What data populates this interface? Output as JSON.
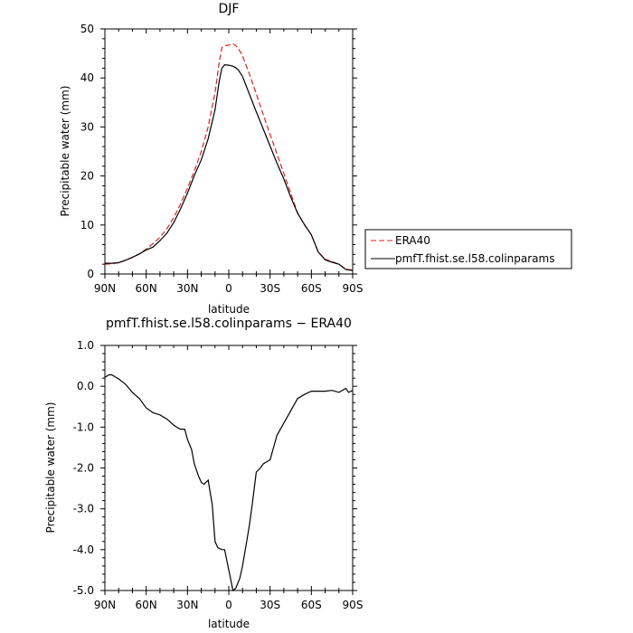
{
  "chart_data": [
    {
      "type": "line",
      "title": "DJF",
      "xlabel": "latitude",
      "ylabel": "Precipitable water (mm)",
      "xticks": [
        "90N",
        "60N",
        "30N",
        "0",
        "30S",
        "60S",
        "90S"
      ],
      "xlim": [
        90,
        -90
      ],
      "ylim": [
        0,
        50
      ],
      "yticks": [
        "0",
        "10",
        "20",
        "30",
        "40",
        "50"
      ],
      "legend_position": "right",
      "series": [
        {
          "name": "ERA40",
          "color": "#e02020",
          "dash": "dashed",
          "x": [
            90,
            85,
            80,
            75,
            70,
            65,
            60,
            55,
            50,
            45,
            40,
            35,
            30,
            25,
            20,
            15,
            10,
            7,
            5,
            3,
            0,
            -3,
            -5,
            -7,
            -10,
            -15,
            -20,
            -25,
            -30,
            -35,
            -40,
            -45,
            -50,
            -55,
            -60,
            -65,
            -70,
            -75,
            -80,
            -85,
            -90
          ],
          "y": [
            2.0,
            2.1,
            2.3,
            2.8,
            3.4,
            4.1,
            5.1,
            6.2,
            7.5,
            9.2,
            11.5,
            14.3,
            17.5,
            21.0,
            25.0,
            30.0,
            37.0,
            43.0,
            46.2,
            46.6,
            46.7,
            47.0,
            46.6,
            46.0,
            44.5,
            40.8,
            36.8,
            32.5,
            28.5,
            24.5,
            20.5,
            16.5,
            12.5,
            10.0,
            8.0,
            4.5,
            3.0,
            2.5,
            2.0,
            1.0,
            0.8
          ]
        },
        {
          "name": "pmfT.fhist.se.l58.colinparams",
          "color": "#000000",
          "dash": "solid",
          "x": [
            90,
            85,
            80,
            75,
            70,
            65,
            60,
            55,
            50,
            45,
            40,
            35,
            30,
            25,
            20,
            15,
            10,
            7,
            5,
            3,
            0,
            -3,
            -5,
            -7,
            -10,
            -15,
            -20,
            -25,
            -30,
            -35,
            -40,
            -45,
            -50,
            -55,
            -60,
            -65,
            -70,
            -75,
            -80,
            -85,
            -90
          ],
          "y": [
            2.2,
            2.2,
            2.3,
            2.8,
            3.4,
            4.1,
            4.9,
            5.5,
            6.8,
            8.3,
            10.5,
            13.3,
            16.5,
            20.1,
            23.3,
            27.6,
            33.5,
            39.2,
            42.0,
            42.7,
            42.6,
            42.4,
            42.1,
            41.6,
            40.3,
            36.7,
            33.1,
            29.6,
            26.1,
            22.6,
            19.4,
            15.7,
            12.4,
            10.1,
            8.0,
            4.5,
            2.9,
            2.4,
            2.0,
            0.9,
            0.7
          ]
        }
      ]
    },
    {
      "type": "line",
      "title": "pmfT.fhist.se.l58.colinparams − ERA40",
      "xlabel": "latitude",
      "ylabel": "Precipitable water (mm)",
      "xticks": [
        "90N",
        "60N",
        "30N",
        "0",
        "30S",
        "60S",
        "90S"
      ],
      "xlim": [
        90,
        -90
      ],
      "ylim": [
        -5.0,
        1.0
      ],
      "yticks": [
        "1.0",
        "0.0",
        "-1.0",
        "-2.0",
        "-3.0",
        "-4.0",
        "-5.0"
      ],
      "series": [
        {
          "color": "#000000",
          "x": [
            90,
            87,
            85,
            80,
            75,
            70,
            65,
            60,
            55,
            50,
            45,
            40,
            37,
            35,
            32,
            30,
            27,
            25,
            22,
            20,
            18,
            15,
            12,
            10,
            8,
            5,
            3,
            0,
            -3,
            -5,
            -8,
            -10,
            -13,
            -15,
            -17,
            -20,
            -23,
            -25,
            -30,
            -35,
            -40,
            -45,
            -50,
            -55,
            -60,
            -65,
            -70,
            -75,
            -80,
            -85,
            -87,
            -90
          ],
          "y": [
            0.22,
            0.28,
            0.28,
            0.18,
            0.05,
            -0.15,
            -0.3,
            -0.53,
            -0.65,
            -0.7,
            -0.8,
            -0.95,
            -1.02,
            -1.05,
            -1.05,
            -1.3,
            -1.55,
            -1.9,
            -2.2,
            -2.35,
            -2.4,
            -2.3,
            -2.9,
            -3.8,
            -3.95,
            -4.0,
            -4.0,
            -4.5,
            -5.0,
            -4.95,
            -4.7,
            -4.4,
            -3.8,
            -3.4,
            -2.9,
            -2.1,
            -2.0,
            -1.9,
            -1.8,
            -1.2,
            -0.9,
            -0.6,
            -0.3,
            -0.2,
            -0.12,
            -0.12,
            -0.12,
            -0.1,
            -0.15,
            -0.05,
            -0.15,
            -0.1
          ]
        }
      ]
    }
  ]
}
